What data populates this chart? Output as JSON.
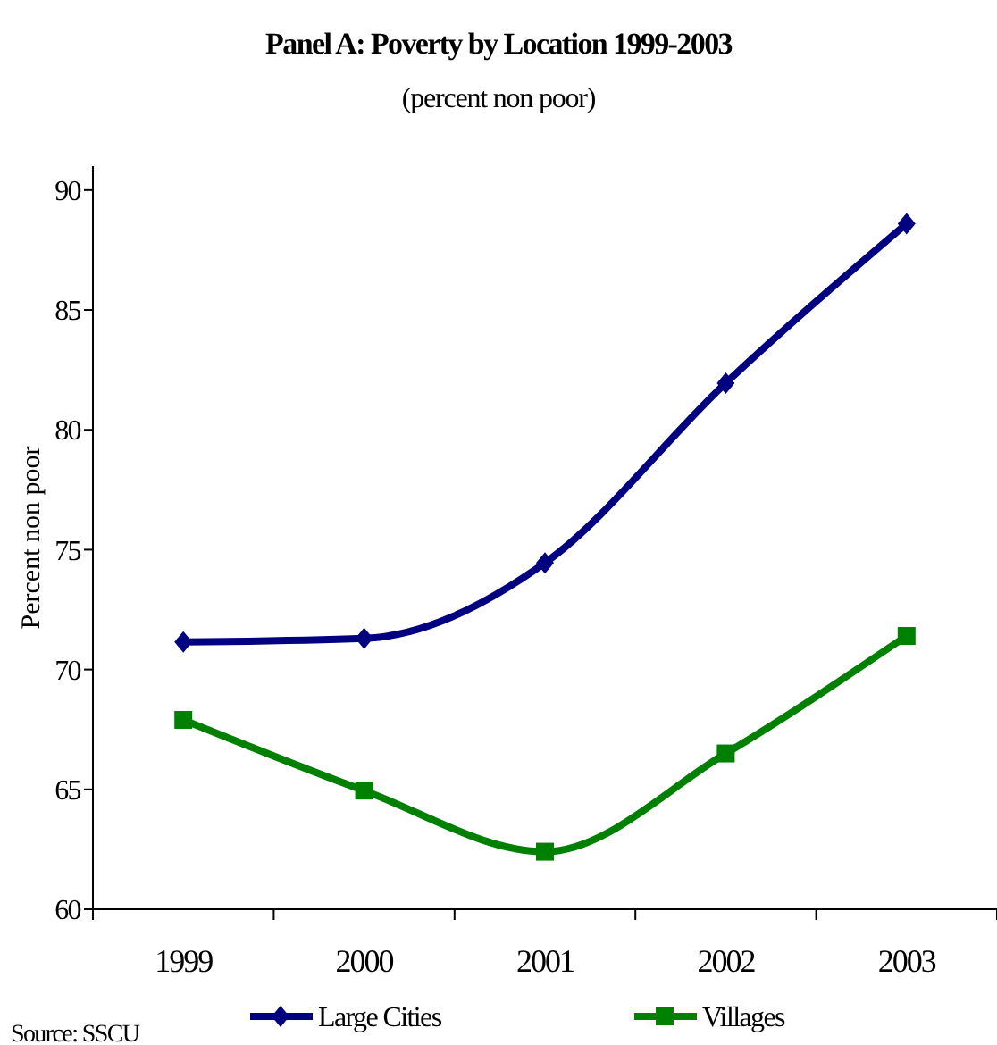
{
  "chart_data": {
    "type": "line",
    "title": "Panel A:  Poverty by Location 1999-2003",
    "subtitle": "(percent non poor)",
    "ylabel": "Percent non poor",
    "categories": [
      "1999",
      "2000",
      "2001",
      "2002",
      "2003"
    ],
    "series": [
      {
        "name": "Large Cities",
        "color": "#000080",
        "values": [
          71.15,
          71.3,
          74.45,
          81.95,
          88.6
        ],
        "marker": "diamond"
      },
      {
        "name": "Villages",
        "color": "#008000",
        "values": [
          67.9,
          64.95,
          62.4,
          66.5,
          71.4
        ],
        "marker": "square"
      }
    ],
    "ylim": [
      60,
      91
    ],
    "yticks": [
      60,
      65,
      70,
      75,
      80,
      85,
      90
    ],
    "grid": false,
    "legend": "bottom",
    "line_style": "solid",
    "annotations": [
      "Source: SSCU"
    ]
  }
}
